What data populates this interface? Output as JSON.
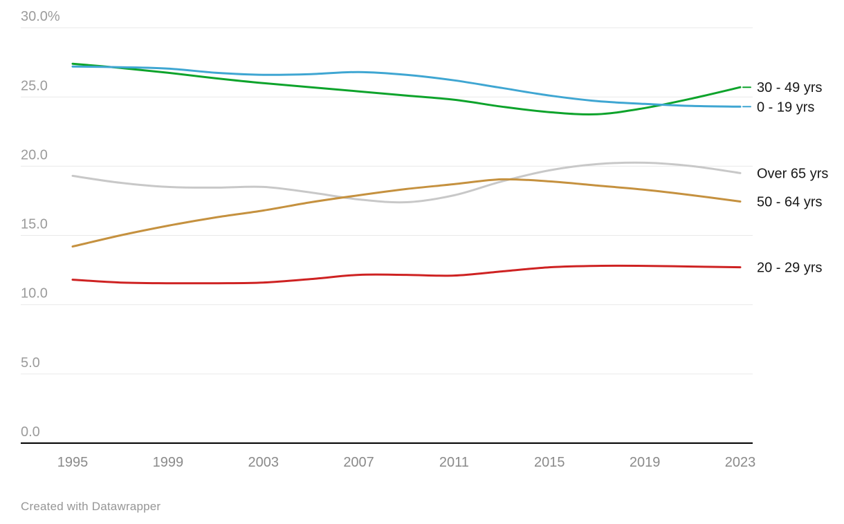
{
  "chart_data": {
    "type": "line",
    "x": [
      1995,
      1997,
      1999,
      2001,
      2003,
      2005,
      2007,
      2009,
      2011,
      2013,
      2015,
      2017,
      2019,
      2021,
      2023
    ],
    "series": [
      {
        "name": "30 - 49 yrs",
        "color": "#0da32b",
        "leader": true,
        "values": [
          27.4,
          27.1,
          26.75,
          26.35,
          26.0,
          25.7,
          25.4,
          25.1,
          24.8,
          24.3,
          23.9,
          23.75,
          24.2,
          24.9,
          25.7
        ]
      },
      {
        "name": "0 - 19 yrs",
        "color": "#3fa6d2",
        "leader": true,
        "values": [
          27.2,
          27.15,
          27.05,
          26.75,
          26.6,
          26.65,
          26.8,
          26.6,
          26.2,
          25.65,
          25.1,
          24.7,
          24.5,
          24.35,
          24.3
        ]
      },
      {
        "name": "Over 65 yrs",
        "color": "#c8c8c8",
        "leader": false,
        "values": [
          19.3,
          18.8,
          18.5,
          18.45,
          18.5,
          18.1,
          17.6,
          17.4,
          17.9,
          18.9,
          19.7,
          20.15,
          20.25,
          20.0,
          19.5
        ]
      },
      {
        "name": "50 - 64 yrs",
        "color": "#c5913f",
        "leader": false,
        "values": [
          14.2,
          15.0,
          15.7,
          16.3,
          16.8,
          17.4,
          17.9,
          18.35,
          18.7,
          19.05,
          18.9,
          18.6,
          18.3,
          17.9,
          17.45
        ]
      },
      {
        "name": "20 - 29 yrs",
        "color": "#ce2222",
        "leader": false,
        "values": [
          11.8,
          11.6,
          11.55,
          11.55,
          11.6,
          11.85,
          12.15,
          12.15,
          12.1,
          12.4,
          12.7,
          12.8,
          12.8,
          12.75,
          12.7
        ]
      }
    ],
    "y_tick_values": [
      0,
      5,
      10,
      15,
      20,
      25,
      30
    ],
    "y_tick_labels": [
      "0.0",
      "5.0",
      "10.0",
      "15.0",
      "20.0",
      "25.0",
      "30.0%"
    ],
    "x_tick_years": [
      1995,
      1999,
      2003,
      2007,
      2011,
      2015,
      2019,
      2023
    ],
    "x_tick_labels": [
      "1995",
      "1999",
      "2003",
      "2007",
      "2011",
      "2015",
      "2019",
      "2023"
    ],
    "ylim": [
      0,
      30
    ],
    "xlim": [
      1995,
      2023
    ],
    "grid": true,
    "legend_position": "direct-right-labels",
    "title": "",
    "xlabel": "",
    "ylabel": ""
  },
  "colors": {
    "gridline": "#e9e9e9",
    "zero_axis": "#000000",
    "y_tick_text": "#9b9b9b",
    "x_tick_text": "#8a8a8a",
    "series_label_text": "#171717",
    "background": "#ffffff"
  },
  "footer": {
    "credit": "Created with Datawrapper"
  }
}
